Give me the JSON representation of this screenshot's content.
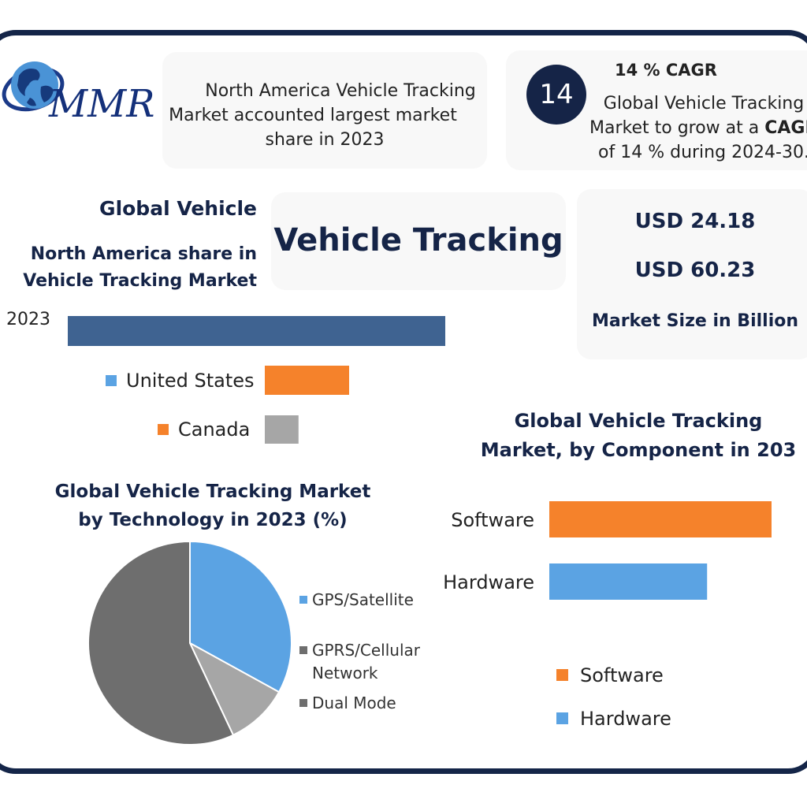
{
  "logo": {
    "text": "MMR"
  },
  "info_left": {
    "lines": [
      "North America Vehicle Tracking",
      "Market accounted largest market",
      "share in 2023"
    ]
  },
  "cagr": {
    "badge": "14",
    "title": "14 % CAGR",
    "line1": "Global Vehicle Tracking",
    "line2_prefix": "Market to grow at a ",
    "line2_bold": "CAGR",
    "line3": "of 14 % during 2024-30."
  },
  "left_heading": {
    "line1": "Global Vehicle",
    "line2": "North America share in",
    "line3": "Vehicle Tracking Market"
  },
  "center_title": "Vehicle Tracking",
  "market_size": {
    "value1": "USD 24.18",
    "value2": "USD 60.23",
    "label": "Market Size in Billion"
  },
  "colors": {
    "navy": "#152447",
    "bar_blue_dark": "#3f6391",
    "orange": "#f5822b",
    "gray": "#a6a6a6",
    "blue": "#5ba3e3",
    "pie_gray": "#6e6e6e"
  },
  "chart_data": [
    {
      "type": "bar",
      "orientation": "horizontal",
      "title": "",
      "categories": [
        "2023"
      ],
      "values": [
        100
      ],
      "legend": [
        "United States",
        "Canada"
      ],
      "legend_values": [
        20,
        8
      ],
      "xlabel": "",
      "ylabel": "",
      "grid": false
    },
    {
      "type": "pie",
      "title": "Global Vehicle Tracking Market by Technology in 2023 (%)",
      "title_lines": [
        "Global Vehicle Tracking Market",
        "by Technology in 2023 (%)"
      ],
      "labels": [
        "GPS/Satellite",
        "GPRS/Cellular Network",
        "Dual Mode"
      ],
      "legend_lines": [
        [
          "GPS/Satellite"
        ],
        [
          "GPRS/Cellular",
          "Network"
        ],
        [
          "Dual Mode"
        ]
      ],
      "values": [
        33,
        57,
        10
      ],
      "slice_order": [
        "GPS/Satellite",
        "Dual Mode",
        "GPRS/Cellular Network"
      ],
      "legend_placement": "right"
    },
    {
      "type": "bar",
      "orientation": "horizontal",
      "title": "Global Vehicle Tracking Market, by Component in 203",
      "title_lines": [
        "Global Vehicle Tracking",
        "Market, by Component in 203"
      ],
      "categories": [
        "Software",
        "Hardware"
      ],
      "values": [
        100,
        71
      ],
      "legend": [
        "Software",
        "Hardware"
      ],
      "legend_placement": "bottom",
      "grid": false
    }
  ]
}
